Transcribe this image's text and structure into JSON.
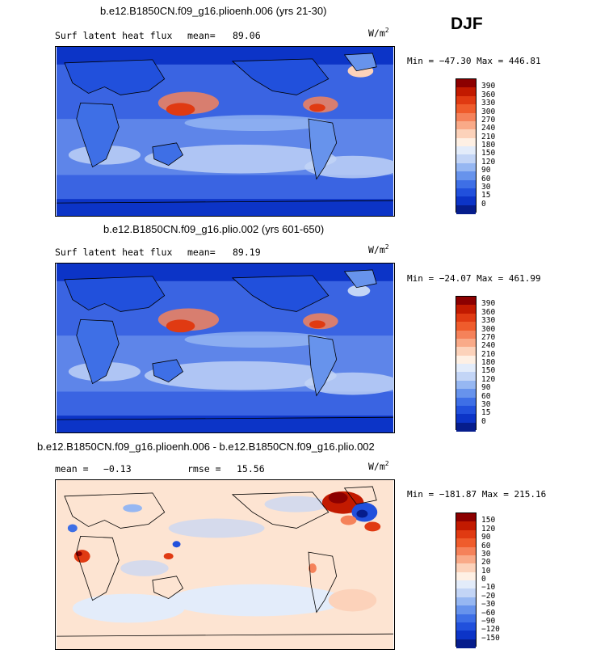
{
  "season": "DJF",
  "chart_data": [
    {
      "type": "heatmap",
      "title": "b.e12.B1850CN.f09_g16.plioenh.006 (yrs 21-30)",
      "variable": "Surf latent heat flux",
      "mean_label": "mean=",
      "mean_value": "89.06",
      "units_base": "W/m",
      "units_exp": "2",
      "minmax": "Min = −47.30 Max = 446.81",
      "colorbar_levels": [
        "390",
        "360",
        "330",
        "300",
        "270",
        "240",
        "210",
        "180",
        "150",
        "120",
        "90",
        "60",
        "30",
        "15",
        "0"
      ],
      "colorbar_colors": [
        "#8c0000",
        "#c21a00",
        "#e03a12",
        "#ef5c2c",
        "#f5825a",
        "#f9aa88",
        "#fcd2ba",
        "#fef0e4",
        "#e3ecfa",
        "#c3d5f6",
        "#96b7f2",
        "#6793ec",
        "#3e6fe6",
        "#2150dc",
        "#0c34c7",
        "#061d8c"
      ]
    },
    {
      "type": "heatmap",
      "title": "b.e12.B1850CN.f09_g16.plio.002 (yrs 601-650)",
      "variable": "Surf latent heat flux",
      "mean_label": "mean=",
      "mean_value": "89.19",
      "units_base": "W/m",
      "units_exp": "2",
      "minmax": "Min = −24.07 Max = 461.99",
      "colorbar_levels": [
        "390",
        "360",
        "330",
        "300",
        "270",
        "240",
        "210",
        "180",
        "150",
        "120",
        "90",
        "60",
        "30",
        "15",
        "0"
      ],
      "colorbar_colors": [
        "#8c0000",
        "#c21a00",
        "#e03a12",
        "#ef5c2c",
        "#f5825a",
        "#f9aa88",
        "#fcd2ba",
        "#fef0e4",
        "#e3ecfa",
        "#c3d5f6",
        "#96b7f2",
        "#6793ec",
        "#3e6fe6",
        "#2150dc",
        "#0c34c7",
        "#061d8c"
      ]
    },
    {
      "type": "heatmap",
      "title": "b.e12.B1850CN.f09_g16.plioenh.006 - b.e12.B1850CN.f09_g16.plio.002",
      "mean_label": "mean =",
      "mean_value": "−0.13",
      "rmse_label": "rmse =",
      "rmse_value": "15.56",
      "units_base": "W/m",
      "units_exp": "2",
      "minmax": "Min = −181.87 Max = 215.16",
      "colorbar_levels": [
        "150",
        "120",
        "90",
        "60",
        "30",
        "20",
        "10",
        "0",
        "−10",
        "−20",
        "−30",
        "−60",
        "−90",
        "−120",
        "−150"
      ],
      "colorbar_colors": [
        "#8c0000",
        "#c21a00",
        "#e03a12",
        "#ef5c2c",
        "#f5825a",
        "#f9aa88",
        "#fcd2ba",
        "#fef0e4",
        "#e3ecfa",
        "#c3d5f6",
        "#96b7f2",
        "#6793ec",
        "#3e6fe6",
        "#2150dc",
        "#0c34c7",
        "#061d8c"
      ]
    }
  ]
}
